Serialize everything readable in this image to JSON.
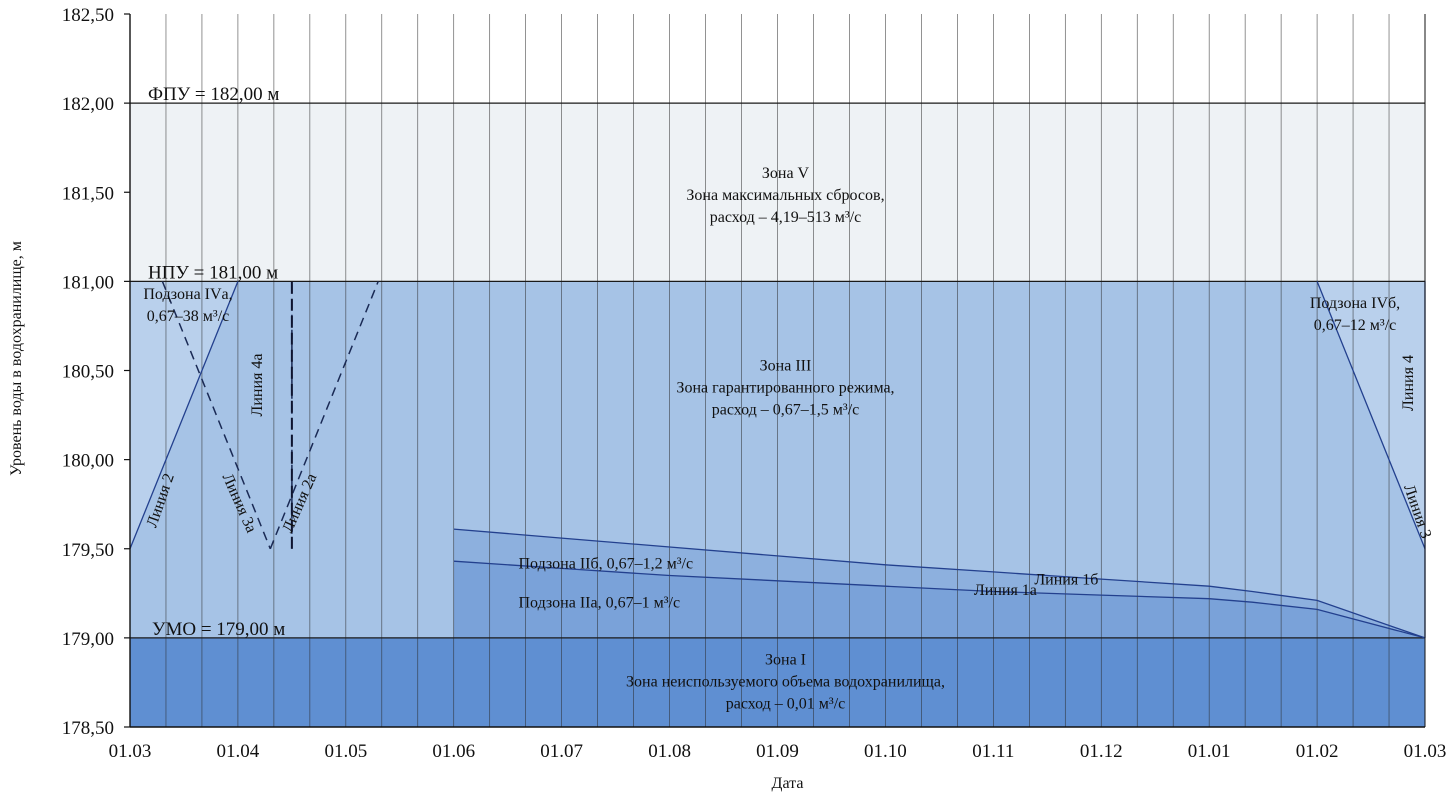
{
  "chart_data": {
    "type": "area",
    "title": "",
    "xlabel": "Дата",
    "ylabel": "Уровень воды в водохранилище, м",
    "ylim": [
      178.5,
      182.5
    ],
    "y_ticks": [
      "182,50",
      "182,00",
      "181,50",
      "181,00",
      "180,50",
      "180,00",
      "179,50",
      "179,00",
      "178,50"
    ],
    "x_ticks": [
      "01.03",
      "01.04",
      "01.05",
      "01.06",
      "01.07",
      "01.08",
      "01.09",
      "01.10",
      "01.11",
      "01.12",
      "01.01",
      "01.02",
      "01.03"
    ],
    "levels": [
      {
        "id": "fpu",
        "label": "ФПУ = 182,00 м",
        "value": 182.0
      },
      {
        "id": "npu",
        "label": "НПУ = 181,00 м",
        "value": 181.0
      },
      {
        "id": "umo",
        "label": "УМО = 179,00 м",
        "value": 179.0
      }
    ],
    "zones": [
      {
        "id": "zone_v",
        "lines": [
          "Зона V",
          "Зона максимальных сбросов,",
          "расход – 4,19–513 м³/с"
        ],
        "range": [
          181.0,
          182.0
        ],
        "color": "#eef2f5"
      },
      {
        "id": "zone_iii",
        "lines": [
          "Зона III",
          "Зона гарантированного режима,",
          "расход – 0,67–1,5 м³/с"
        ],
        "range": [
          179.0,
          181.0
        ],
        "color": "#a6c3e6"
      },
      {
        "id": "zone_i",
        "lines": [
          "Зона I",
          "Зона неиспользуемого объема водохранилища,",
          "расход – 0,01 м³/с"
        ],
        "range": [
          178.5,
          179.0
        ],
        "color": "#5f8fd2"
      },
      {
        "id": "sub_iva",
        "lines": [
          "Подзона IVа,",
          "0,67–38 м³/с"
        ],
        "color": "#b9d0ec"
      },
      {
        "id": "sub_ivb",
        "lines": [
          "Подзона IVб,",
          "0,67–12 м³/с"
        ],
        "color": "#b9d0ec"
      },
      {
        "id": "sub_iib",
        "lines": [
          "Подзона IIб, 0,67–1,2 м³/с"
        ],
        "color": "#8db0de"
      },
      {
        "id": "sub_iia",
        "lines": [
          "Подзона IIа, 0,67–1 м³/с"
        ],
        "color": "#7aa2d9"
      }
    ],
    "series": [
      {
        "name": "Линия 1б",
        "style": "solid",
        "x": [
          3.0,
          4.0,
          5.0,
          6.0,
          7.0,
          8.0,
          9.0,
          10.0,
          10.4,
          11.0,
          12.0
        ],
        "y": [
          179.61,
          179.56,
          179.51,
          179.46,
          179.41,
          179.37,
          179.33,
          179.29,
          179.26,
          179.21,
          179.0
        ]
      },
      {
        "name": "Линия 1а",
        "style": "solid",
        "x": [
          3.0,
          4.0,
          5.0,
          6.0,
          7.0,
          8.0,
          9.0,
          10.0,
          10.4,
          11.0,
          12.0
        ],
        "y": [
          179.43,
          179.39,
          179.35,
          179.32,
          179.29,
          179.26,
          179.24,
          179.22,
          179.2,
          179.16,
          179.0
        ]
      },
      {
        "name": "Линия 2",
        "style": "solid",
        "x": [
          0.0,
          1.0
        ],
        "y": [
          179.5,
          181.0
        ]
      },
      {
        "name": "Линия 3",
        "style": "solid",
        "x": [
          11.0,
          12.0
        ],
        "y": [
          181.0,
          179.5
        ]
      },
      {
        "name": "Линия 2а",
        "style": "dashed",
        "x": [
          1.3,
          2.3
        ],
        "y": [
          179.5,
          181.0
        ]
      },
      {
        "name": "Линия 3а",
        "style": "dashed",
        "x": [
          0.3,
          1.3
        ],
        "y": [
          181.0,
          179.5
        ]
      },
      {
        "name": "Линия 4а",
        "style": "dashed",
        "x": [
          1.5,
          1.5
        ],
        "y": [
          179.5,
          181.0
        ]
      },
      {
        "name": "Линия 4",
        "style": "solid",
        "x": [
          12.0,
          12.0
        ],
        "y": [
          179.0,
          181.0
        ]
      }
    ]
  }
}
